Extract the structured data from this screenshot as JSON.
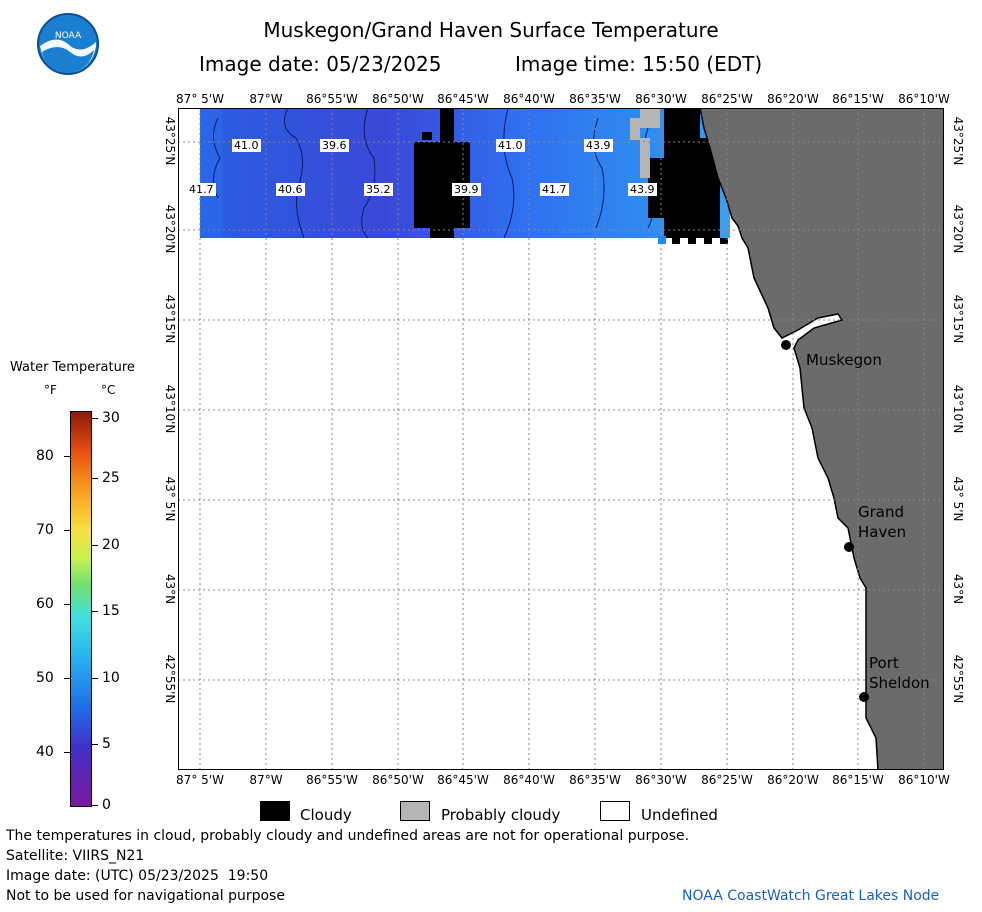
{
  "header": {
    "title": "Muskegon/Grand Haven Surface Temperature",
    "image_date": "Image date: 05/23/2025",
    "image_time": "Image time: 15:50 (EDT)"
  },
  "logo": {
    "text": "NOAA",
    "icon": "noaa-logo-icon"
  },
  "axes": {
    "lon_labels": [
      "87° 5'W",
      "87°W",
      "86°55'W",
      "86°50'W",
      "86°45'W",
      "86°40'W",
      "86°35'W",
      "86°30'W",
      "86°25'W",
      "86°20'W",
      "86°15'W",
      "86°10'W"
    ],
    "lat_labels": [
      "43°25'N",
      "43°20'N",
      "43°15'N",
      "43°10'N",
      "43° 5'N",
      "43°N",
      "42°55'N"
    ]
  },
  "temperature_labels": [
    "41.0",
    "39.6",
    "41.0",
    "43.9",
    "41.7",
    "40.6",
    "35.2",
    "39.9",
    "41.7",
    "43.9"
  ],
  "cities": {
    "muskegon": "Muskegon",
    "grand_haven_1": "Grand",
    "grand_haven_2": "Haven",
    "port_sheldon_1": "Port",
    "port_sheldon_2": "Sheldon"
  },
  "colorbar": {
    "title": "Water Temperature",
    "unit_f": "°F",
    "unit_c": "°C",
    "f_ticks": [
      "80",
      "70",
      "60",
      "50",
      "40"
    ],
    "c_ticks": [
      "30",
      "25",
      "20",
      "15",
      "10",
      "5",
      "0"
    ]
  },
  "legend": {
    "cloudy": "Cloudy",
    "probably_cloudy": "Probably cloudy",
    "undefined": "Undefined"
  },
  "footer": {
    "note": "The temperatures in cloud, probably cloudy and undefined areas are not for operational purpose.",
    "satellite": "Satellite: VIIRS_N21",
    "utc_date": "Image date: (UTC) 05/23/2025  19:50",
    "nav": "Not to be used for navigational purpose",
    "credit": "NOAA CoastWatch Great Lakes Node"
  },
  "colors": {
    "water": "#2f6fe8",
    "land": "#6b6b6b",
    "cloud": "#000000",
    "probably_cloudy": "#b5b5b5"
  }
}
